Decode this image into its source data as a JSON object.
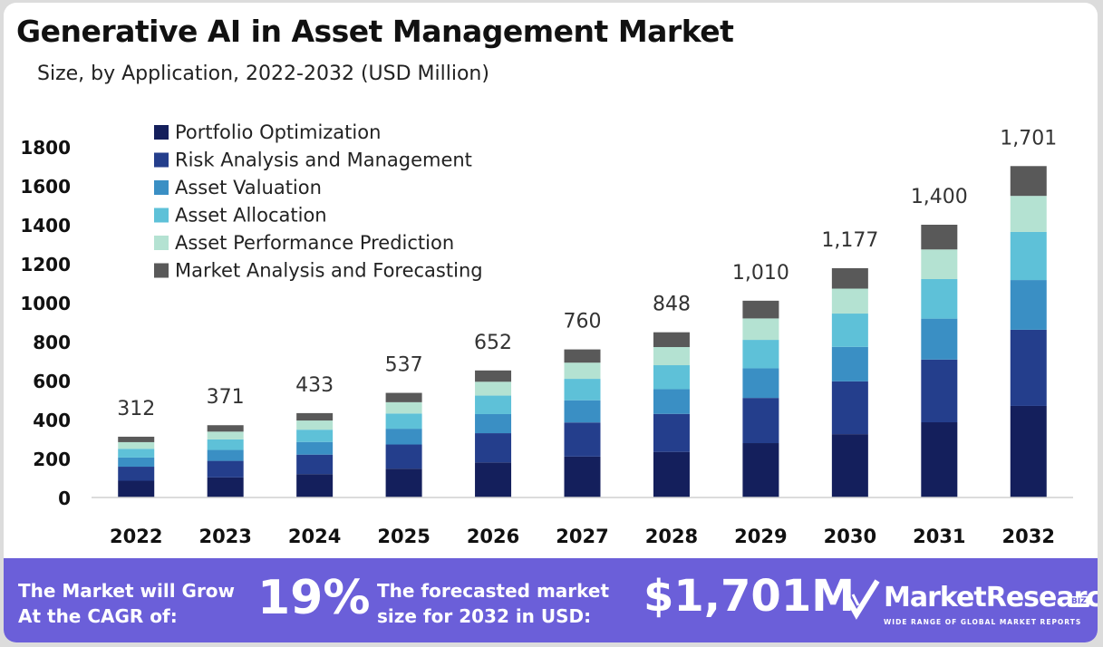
{
  "header": {
    "title": "Generative AI in Asset Management Market",
    "subtitle": "Size, by Application, 2022-2032 (USD Million)"
  },
  "colors": {
    "series": [
      "#141f5c",
      "#243e8c",
      "#3a8fc4",
      "#5ec1d8",
      "#b4e2d2",
      "#595959"
    ],
    "footer_bg": "#6b5fd9"
  },
  "chart_data": {
    "type": "bar",
    "stacked": true,
    "title": "Generative AI in Asset Management Market",
    "subtitle": "Size, by Application, 2022-2032 (USD Million)",
    "xlabel": "",
    "ylabel": "",
    "ylim": [
      0,
      1800
    ],
    "yticks": [
      0,
      200,
      400,
      600,
      800,
      1000,
      1200,
      1400,
      1600,
      1800
    ],
    "legend_position": "top-left",
    "categories": [
      "2022",
      "2023",
      "2024",
      "2025",
      "2026",
      "2027",
      "2028",
      "2029",
      "2030",
      "2031",
      "2032"
    ],
    "totals": [
      312,
      371,
      433,
      537,
      652,
      760,
      848,
      1010,
      1177,
      1400,
      1701
    ],
    "total_labels": [
      "312",
      "371",
      "433",
      "537",
      "652",
      "760",
      "848",
      "1,010",
      "1,177",
      "1,400",
      "1,701"
    ],
    "series": [
      {
        "name": "Portfolio Optimization",
        "values": [
          86,
          103,
          120,
          148,
          180,
          210,
          234,
          279,
          325,
          386,
          470
        ]
      },
      {
        "name": "Risk Analysis and Management",
        "values": [
          72,
          85,
          100,
          124,
          150,
          175,
          195,
          232,
          271,
          322,
          391
        ]
      },
      {
        "name": "Asset Valuation",
        "values": [
          47,
          56,
          65,
          81,
          98,
          114,
          127,
          152,
          177,
          210,
          255
        ]
      },
      {
        "name": "Asset Allocation",
        "values": [
          45,
          54,
          63,
          78,
          95,
          110,
          123,
          146,
          171,
          203,
          247
        ]
      },
      {
        "name": "Asset Performance Prediction",
        "values": [
          34,
          40,
          47,
          58,
          71,
          83,
          93,
          110,
          128,
          152,
          185
        ]
      },
      {
        "name": "Market Analysis and Forecasting",
        "values": [
          28,
          33,
          38,
          48,
          58,
          68,
          76,
          91,
          105,
          127,
          153
        ]
      }
    ]
  },
  "footer": {
    "cagr_text_line1": "The Market will Grow",
    "cagr_text_line2": "At the CAGR of:",
    "cagr_value": "19%",
    "forecast_text_line1": "The forecasted market",
    "forecast_text_line2": "size for 2032 in USD:",
    "forecast_value": "$1,701M",
    "brand_name": "MarketResearch",
    "brand_suffix": "BIZ",
    "brand_tagline": "WIDE RANGE OF GLOBAL MARKET REPORTS"
  }
}
